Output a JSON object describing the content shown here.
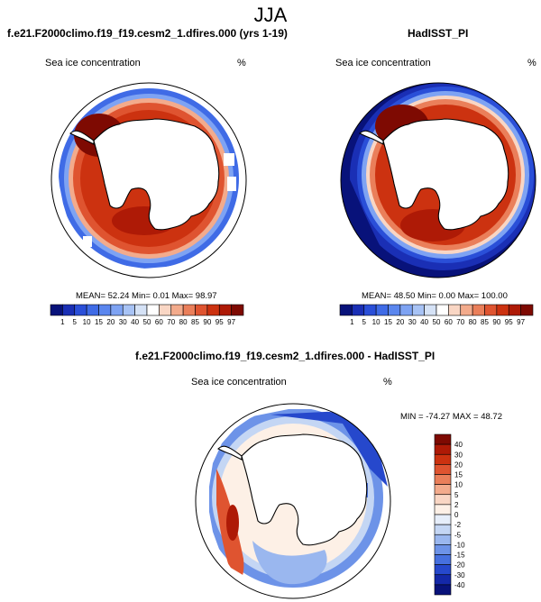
{
  "main_title": "JJA",
  "panels": [
    {
      "title": "f.e21.F2000climo.f19_f19.cesm2_1.dfires.000 (yrs 1-19)",
      "var_label": "Sea ice concentration",
      "units": "%",
      "stats": "MEAN=  52.24  Min=   0.01  Max=  98.97"
    },
    {
      "title": "HadISST_PI",
      "var_label": "Sea ice concentration",
      "units": "%",
      "stats": "MEAN=  48.50  Min=   0.00  Max= 100.00"
    },
    {
      "title": "f.e21.F2000climo.f19_f19.cesm2_1.dfires.000 - HadISST_PI",
      "var_label": "Sea ice concentration",
      "units": "%",
      "stats": "MIN = -74.27 MAX =  48.72"
    }
  ],
  "chart_data": [
    {
      "type": "heatmap",
      "projection": "south polar stereographic",
      "title": "f.e21.F2000climo.f19_f19.cesm2_1.dfires.000 (yrs 1-19)",
      "variable": "Sea ice concentration",
      "units": "%",
      "mean": 52.24,
      "min": 0.01,
      "max": 98.97,
      "colorbar_levels": [
        1,
        5,
        10,
        15,
        20,
        30,
        40,
        50,
        60,
        70,
        80,
        85,
        90,
        95,
        97
      ],
      "colorbar_colors": [
        "#08127a",
        "#1a2fb5",
        "#2a4fd8",
        "#3f6be6",
        "#5a86ee",
        "#7ea3f3",
        "#a8c3f5",
        "#d5e2f6",
        "#ffffff",
        "#f9d6c4",
        "#f3ab8c",
        "#ea7f5a",
        "#df5430",
        "#cc3210",
        "#ae1a06",
        "#7e0a02"
      ]
    },
    {
      "type": "heatmap",
      "projection": "south polar stereographic",
      "title": "HadISST_PI",
      "variable": "Sea ice concentration",
      "units": "%",
      "mean": 48.5,
      "min": 0.0,
      "max": 100.0,
      "colorbar_levels": [
        1,
        5,
        10,
        15,
        20,
        30,
        40,
        50,
        60,
        70,
        80,
        85,
        90,
        95,
        97
      ],
      "colorbar_colors": [
        "#08127a",
        "#1a2fb5",
        "#2a4fd8",
        "#3f6be6",
        "#5a86ee",
        "#7ea3f3",
        "#a8c3f5",
        "#d5e2f6",
        "#ffffff",
        "#f9d6c4",
        "#f3ab8c",
        "#ea7f5a",
        "#df5430",
        "#cc3210",
        "#ae1a06",
        "#7e0a02"
      ]
    },
    {
      "type": "heatmap",
      "projection": "south polar stereographic",
      "title": "f.e21.F2000climo.f19_f19.cesm2_1.dfires.000 - HadISST_PI",
      "variable": "Sea ice concentration",
      "units": "%",
      "min": -74.27,
      "max": 48.72,
      "colorbar_levels": [
        40,
        30,
        20,
        15,
        10,
        5,
        2,
        0,
        -2,
        -5,
        -10,
        -15,
        -20,
        -30,
        -40
      ],
      "colorbar_colors": [
        "#7e0a02",
        "#ae1a06",
        "#cc3210",
        "#df5430",
        "#ea7f5a",
        "#f3ab8c",
        "#f9d6c4",
        "#fdf0e6",
        "#e6eefa",
        "#c4d6f4",
        "#9ab7ef",
        "#6d93e8",
        "#4670df",
        "#2648cc",
        "#1428a8",
        "#08127a"
      ]
    }
  ]
}
